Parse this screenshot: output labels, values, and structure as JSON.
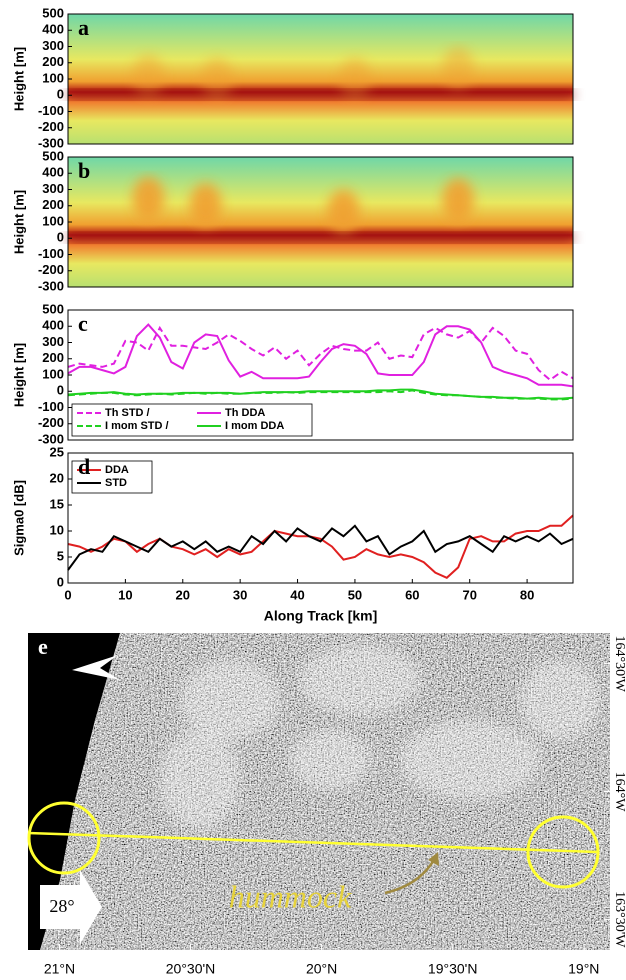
{
  "chart_data": [
    {
      "type": "heatmap",
      "panel_label": "a",
      "ylabel": "Height [m]",
      "ylim": [
        -300,
        500
      ],
      "yticks": [
        -300,
        -200,
        -100,
        0,
        100,
        200,
        300,
        400,
        500
      ],
      "xlim": [
        0,
        88
      ]
    },
    {
      "type": "heatmap",
      "panel_label": "b",
      "ylabel": "Height [m]",
      "ylim": [
        -300,
        500
      ],
      "yticks": [
        -300,
        -200,
        -100,
        0,
        100,
        200,
        300,
        400,
        500
      ],
      "xlim": [
        0,
        88
      ]
    },
    {
      "type": "line",
      "panel_label": "c",
      "ylabel": "Height [m]",
      "ylim": [
        -300,
        500
      ],
      "yticks": [
        -300,
        -200,
        -100,
        0,
        100,
        200,
        300,
        400,
        500
      ],
      "xlim": [
        0,
        88
      ],
      "legend": "lower left",
      "x": [
        0,
        2,
        4,
        6,
        8,
        10,
        12,
        14,
        16,
        18,
        20,
        22,
        24,
        26,
        28,
        30,
        32,
        34,
        36,
        38,
        40,
        42,
        44,
        46,
        48,
        50,
        52,
        54,
        56,
        58,
        60,
        62,
        64,
        66,
        68,
        70,
        72,
        74,
        76,
        78,
        80,
        82,
        84,
        86,
        88
      ],
      "series": [
        {
          "name": "Th STD /",
          "color": "#e020e0",
          "dash": true,
          "values": [
            150,
            170,
            160,
            150,
            170,
            310,
            300,
            250,
            390,
            280,
            280,
            270,
            260,
            300,
            350,
            310,
            260,
            220,
            270,
            200,
            250,
            160,
            230,
            280,
            260,
            250,
            250,
            300,
            200,
            220,
            210,
            350,
            390,
            350,
            330,
            370,
            300,
            390,
            340,
            250,
            230,
            130,
            70,
            120,
            80
          ]
        },
        {
          "name": "Th DDA",
          "color": "#e020e0",
          "dash": false,
          "values": [
            110,
            150,
            150,
            130,
            110,
            150,
            340,
            410,
            330,
            180,
            140,
            300,
            350,
            340,
            190,
            90,
            120,
            80,
            80,
            80,
            80,
            90,
            180,
            260,
            290,
            280,
            230,
            110,
            100,
            100,
            100,
            180,
            350,
            400,
            400,
            380,
            300,
            150,
            120,
            100,
            80,
            40,
            40,
            40,
            30
          ]
        },
        {
          "name": "I mom STD /",
          "color": "#20d020",
          "dash": true,
          "values": [
            -25,
            -20,
            -15,
            -10,
            -10,
            -20,
            -25,
            -20,
            -15,
            -20,
            -15,
            -10,
            -15,
            -10,
            -15,
            -15,
            -10,
            -10,
            -10,
            -5,
            -10,
            -5,
            -5,
            -5,
            -5,
            -5,
            -5,
            -5,
            0,
            -5,
            5,
            -10,
            -20,
            -25,
            -25,
            -30,
            -35,
            -40,
            -40,
            -45,
            -45,
            -45,
            -50,
            -50,
            -45
          ]
        },
        {
          "name": "I mom DDA",
          "color": "#20d020",
          "dash": false,
          "values": [
            -20,
            -15,
            -10,
            -10,
            -5,
            -15,
            -20,
            -15,
            -15,
            -15,
            -10,
            -10,
            -10,
            -10,
            -10,
            -15,
            -10,
            -5,
            -5,
            -5,
            -5,
            0,
            0,
            0,
            0,
            0,
            0,
            5,
            5,
            10,
            10,
            0,
            -15,
            -20,
            -25,
            -30,
            -35,
            -35,
            -40,
            -40,
            -45,
            -40,
            -45,
            -45,
            -40
          ]
        }
      ]
    },
    {
      "type": "line",
      "panel_label": "d",
      "ylabel": "Sigma0 [dB]",
      "xlabel": "Along Track [km]",
      "ylim": [
        0,
        25
      ],
      "yticks": [
        0,
        5,
        10,
        15,
        20,
        25
      ],
      "xlim": [
        0,
        88
      ],
      "xticks": [
        0,
        10,
        20,
        30,
        40,
        50,
        60,
        70,
        80
      ],
      "legend": "upper left",
      "x": [
        0,
        2,
        4,
        6,
        8,
        10,
        12,
        14,
        16,
        18,
        20,
        22,
        24,
        26,
        28,
        30,
        32,
        34,
        36,
        38,
        40,
        42,
        44,
        46,
        48,
        50,
        52,
        54,
        56,
        58,
        60,
        62,
        64,
        66,
        68,
        70,
        72,
        74,
        76,
        78,
        80,
        82,
        84,
        86,
        88
      ],
      "series": [
        {
          "name": "DDA",
          "color": "#e02020",
          "dash": false,
          "values": [
            7.5,
            7,
            6,
            7,
            8.5,
            8,
            6,
            7.5,
            8.5,
            7,
            6.5,
            5.5,
            6.5,
            5,
            6.5,
            5.5,
            6,
            8,
            10,
            9.5,
            9,
            9,
            8.5,
            7,
            4.5,
            5,
            6.5,
            5.5,
            5,
            5.5,
            5,
            4,
            2,
            1,
            3,
            8.5,
            9,
            8,
            8,
            9.5,
            10,
            10,
            11,
            11,
            13
          ]
        },
        {
          "name": "STD",
          "color": "#000000",
          "dash": false,
          "values": [
            2.5,
            5.5,
            6.5,
            6,
            9,
            8,
            7,
            6,
            8.5,
            7,
            8,
            6.5,
            8,
            6,
            7,
            6,
            9,
            7.5,
            10,
            8,
            10.5,
            9,
            8,
            10.5,
            9,
            11,
            8,
            9,
            5.5,
            7,
            8,
            10,
            6,
            7.5,
            8,
            9,
            7.5,
            6,
            9,
            8,
            9,
            8,
            9.5,
            7.5,
            8.5
          ]
        }
      ]
    },
    {
      "type": "image",
      "panel_label": "e",
      "annotations": [
        "28°",
        "hummock"
      ],
      "xlim": [
        21.12,
        18.9
      ],
      "xticks": [
        {
          "value": 21,
          "label": "21°N"
        },
        {
          "value": 20.5,
          "label": "20°30'N"
        },
        {
          "value": 20,
          "label": "20°N"
        },
        {
          "value": 19.5,
          "label": "19°30'N"
        },
        {
          "value": 19,
          "label": "19°N"
        }
      ],
      "ylim": [
        163.38,
        164.62
      ],
      "yticks": [
        {
          "value": 163.5,
          "label": "163°30'W"
        },
        {
          "value": 164,
          "label": "164°W"
        },
        {
          "value": 164.5,
          "label": "164°30'W"
        }
      ]
    }
  ]
}
